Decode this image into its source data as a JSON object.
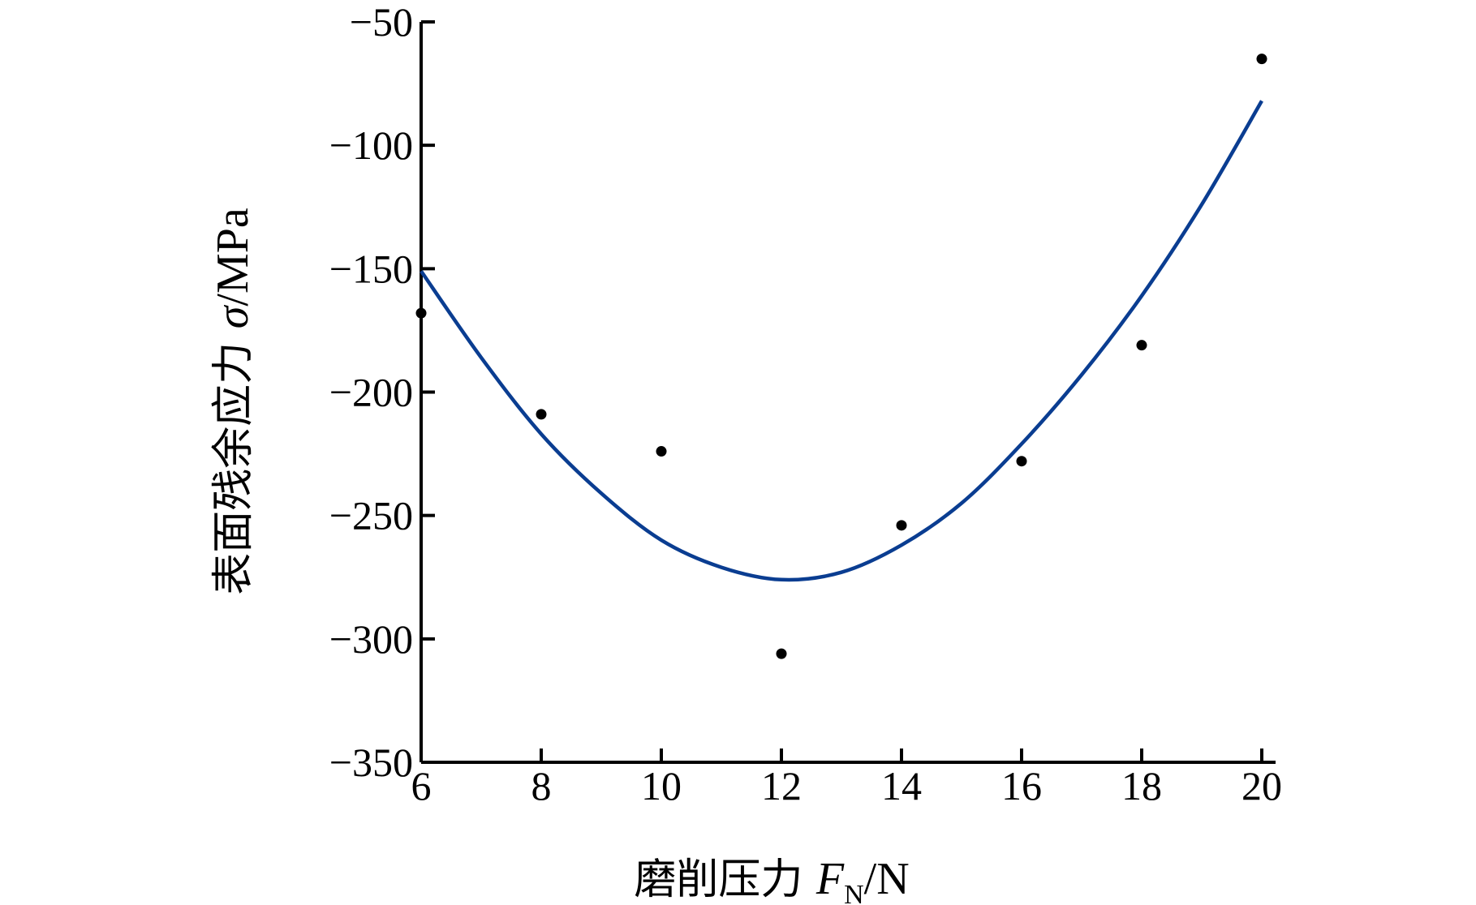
{
  "chart_data": {
    "type": "scatter",
    "title": "",
    "xlabel": "磨削压力 F_N/N",
    "xlabel_parts": {
      "prefix": "磨削压力 ",
      "symbol": "F",
      "subscript": "N",
      "unit": "/N"
    },
    "ylabel": "表面残余应力 σ/MPa",
    "ylabel_parts": {
      "prefix": "表面残余应力 ",
      "symbol": "σ",
      "unit": "/MPa"
    },
    "xlim": [
      6,
      20
    ],
    "ylim": [
      -350,
      -50
    ],
    "xticks": [
      6,
      8,
      10,
      12,
      14,
      16,
      18,
      20
    ],
    "yticks": [
      -50,
      -100,
      -150,
      -200,
      -250,
      -300,
      -350
    ],
    "xtick_labels": [
      "6",
      "8",
      "10",
      "12",
      "14",
      "16",
      "18",
      "20"
    ],
    "ytick_labels": [
      "−50",
      "−100",
      "−150",
      "−200",
      "−250",
      "−300",
      "−350"
    ],
    "grid": false,
    "legend": "none",
    "series": [
      {
        "type": "scatter",
        "x": [
          6,
          8,
          10,
          12,
          14,
          16,
          18,
          20
        ],
        "y": [
          -168,
          -209,
          -224,
          -306,
          -254,
          -228,
          -181,
          -65
        ],
        "color": "#000000"
      },
      {
        "type": "line",
        "x": [
          6,
          7,
          8,
          9,
          10,
          11,
          12,
          13,
          14,
          15,
          16,
          17,
          18,
          19,
          20
        ],
        "y": [
          -151,
          -186,
          -217,
          -241,
          -260,
          -271,
          -276,
          -273,
          -262,
          -245,
          -221,
          -193,
          -161,
          -124,
          -82
        ],
        "color": "#0a3d91"
      }
    ]
  }
}
